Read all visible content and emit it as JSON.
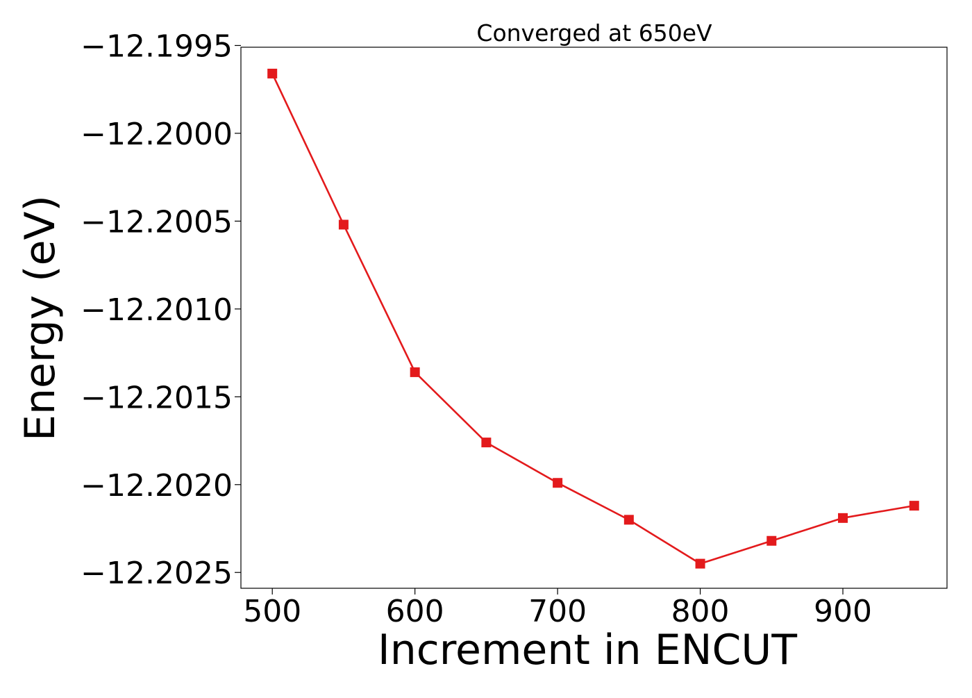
{
  "chart_data": {
    "type": "line",
    "title": "Converged at 650eV",
    "xlabel": "Increment in ENCUT",
    "ylabel": "Energy (eV)",
    "x": [
      500,
      550,
      600,
      650,
      700,
      750,
      800,
      850,
      900,
      950
    ],
    "series": [
      {
        "values": [
          -12.19966,
          -12.20052,
          -12.20136,
          -12.20176,
          -12.20199,
          -12.2022,
          -12.20245,
          -12.20232,
          -12.20219,
          -12.20212
        ],
        "color": "#e31a1c",
        "marker": "square"
      }
    ],
    "xlim": [
      478,
      973
    ],
    "ylim": [
      -12.20259,
      -12.19951
    ],
    "xticks": [
      500,
      600,
      700,
      800,
      900
    ],
    "xtick_labels": [
      "500",
      "600",
      "700",
      "800",
      "900"
    ],
    "yticks": [
      -12.1995,
      -12.2,
      -12.2005,
      -12.201,
      -12.2015,
      -12.202,
      -12.2025
    ],
    "ytick_labels": [
      "−12.1995",
      "−12.2000",
      "−12.2005",
      "−12.2010",
      "−12.2015",
      "−12.2020",
      "−12.2025"
    ],
    "grid": false,
    "legend": "none"
  }
}
